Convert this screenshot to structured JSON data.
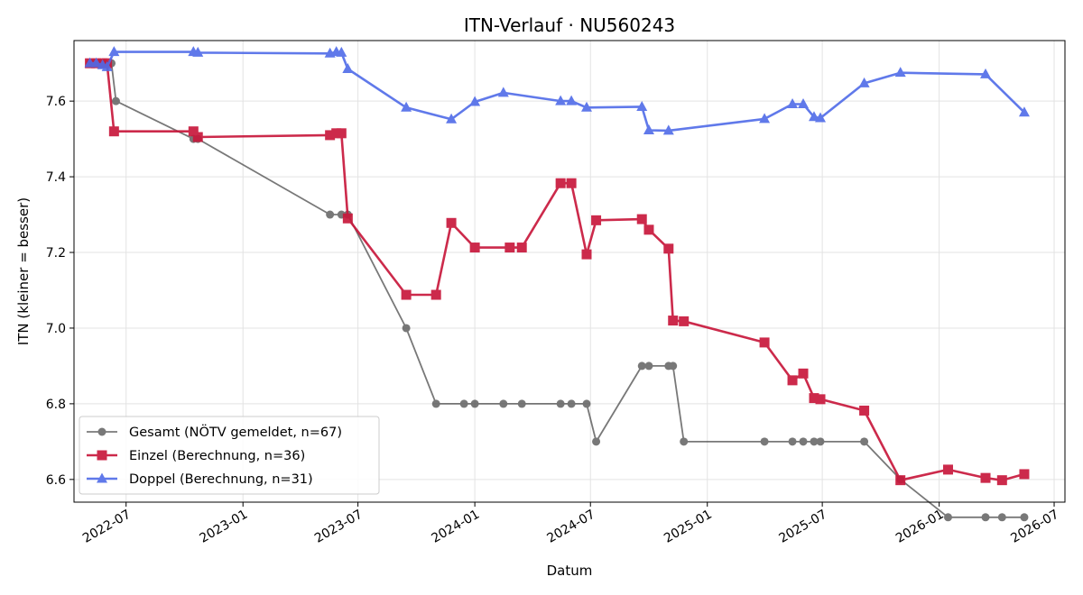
{
  "chart_data": {
    "type": "line",
    "title": "ITN-Verlauf · NU560243",
    "xlabel": "Datum",
    "ylabel": "ITN  (kleiner = besser)",
    "xlim": [
      "2022-04-10",
      "2026-07-18"
    ],
    "ylim": [
      6.54,
      7.76
    ],
    "x_ticks": [
      "2022-07",
      "2023-01",
      "2023-07",
      "2024-01",
      "2024-07",
      "2025-01",
      "2025-07",
      "2026-01",
      "2026-07"
    ],
    "y_ticks": [
      "6.6",
      "6.8",
      "7.0",
      "7.2",
      "7.4",
      "7.6"
    ],
    "grid": true,
    "legend_position": "lower-left",
    "series": [
      {
        "name": "Gesamt (NÖTV gemeldet, n=67)",
        "color": "#404040",
        "marker": "circle",
        "x": [
          "2022-05-05",
          "2022-05-12",
          "2022-05-20",
          "2022-05-28",
          "2022-06-08",
          "2022-06-15",
          "2022-10-15",
          "2022-10-22",
          "2023-05-18",
          "2023-06-05",
          "2023-06-15",
          "2023-09-15",
          "2023-11-01",
          "2023-12-15",
          "2024-01-01",
          "2024-02-15",
          "2024-03-15",
          "2024-05-15",
          "2024-06-01",
          "2024-06-25",
          "2024-07-10",
          "2024-09-20",
          "2024-10-01",
          "2024-11-01",
          "2024-11-08",
          "2024-11-25",
          "2025-04-01",
          "2025-05-15",
          "2025-06-01",
          "2025-06-18",
          "2025-06-28",
          "2025-09-05",
          "2025-11-01",
          "2026-01-15",
          "2026-03-15",
          "2026-04-10",
          "2026-05-15"
        ],
        "y": [
          7.7,
          7.7,
          7.7,
          7.7,
          7.7,
          7.6,
          7.5,
          7.5,
          7.3,
          7.3,
          7.3,
          7.0,
          6.8,
          6.8,
          6.8,
          6.8,
          6.8,
          6.8,
          6.8,
          6.8,
          6.7,
          6.9,
          6.9,
          6.9,
          6.9,
          6.7,
          6.7,
          6.7,
          6.7,
          6.7,
          6.7,
          6.7,
          6.6,
          6.5,
          6.5,
          6.5,
          6.5
        ]
      },
      {
        "name": "Einzel (Berechnung, n=36)",
        "color": "#c8183c",
        "marker": "square",
        "x": [
          "2022-05-05",
          "2022-05-15",
          "2022-05-25",
          "2022-06-01",
          "2022-06-12",
          "2022-10-15",
          "2022-10-22",
          "2023-05-18",
          "2023-05-28",
          "2023-06-05",
          "2023-06-15",
          "2023-09-15",
          "2023-11-01",
          "2023-11-25",
          "2024-01-01",
          "2024-02-25",
          "2024-03-15",
          "2024-05-15",
          "2024-06-01",
          "2024-06-25",
          "2024-07-10",
          "2024-09-20",
          "2024-10-01",
          "2024-11-01",
          "2024-11-08",
          "2024-11-25",
          "2025-04-01",
          "2025-05-15",
          "2025-06-01",
          "2025-06-18",
          "2025-06-28",
          "2025-09-05",
          "2025-11-01",
          "2026-01-15",
          "2026-03-15",
          "2026-04-10",
          "2026-05-15"
        ],
        "y": [
          7.7,
          7.7,
          7.7,
          7.7,
          7.52,
          7.52,
          7.505,
          7.51,
          7.515,
          7.515,
          7.29,
          7.088,
          7.088,
          7.278,
          7.213,
          7.213,
          7.213,
          7.383,
          7.383,
          7.195,
          7.285,
          7.288,
          7.26,
          7.21,
          7.02,
          7.018,
          6.962,
          6.862,
          6.88,
          6.815,
          6.812,
          6.782,
          6.598,
          6.626,
          6.604,
          6.598,
          6.614
        ]
      },
      {
        "name": "Doppel (Berechnung, n=31)",
        "color": "#4f6be8",
        "marker": "triangle",
        "x": [
          "2022-05-05",
          "2022-05-15",
          "2022-05-25",
          "2022-06-01",
          "2022-06-12",
          "2022-10-15",
          "2022-10-22",
          "2023-05-18",
          "2023-05-28",
          "2023-06-05",
          "2023-06-15",
          "2023-09-15",
          "2023-11-25",
          "2024-01-01",
          "2024-02-15",
          "2024-05-15",
          "2024-06-01",
          "2024-06-25",
          "2024-09-20",
          "2024-10-01",
          "2024-11-01",
          "2025-04-01",
          "2025-05-15",
          "2025-06-01",
          "2025-06-18",
          "2025-06-28",
          "2025-09-05",
          "2025-11-01",
          "2026-03-15",
          "2026-05-15"
        ],
        "y": [
          7.7,
          7.7,
          7.695,
          7.69,
          7.73,
          7.73,
          7.728,
          7.726,
          7.73,
          7.728,
          7.685,
          7.583,
          7.552,
          7.598,
          7.622,
          7.6,
          7.6,
          7.583,
          7.585,
          7.523,
          7.522,
          7.553,
          7.592,
          7.592,
          7.558,
          7.555,
          7.647,
          7.675,
          7.671,
          7.57
        ]
      }
    ]
  }
}
